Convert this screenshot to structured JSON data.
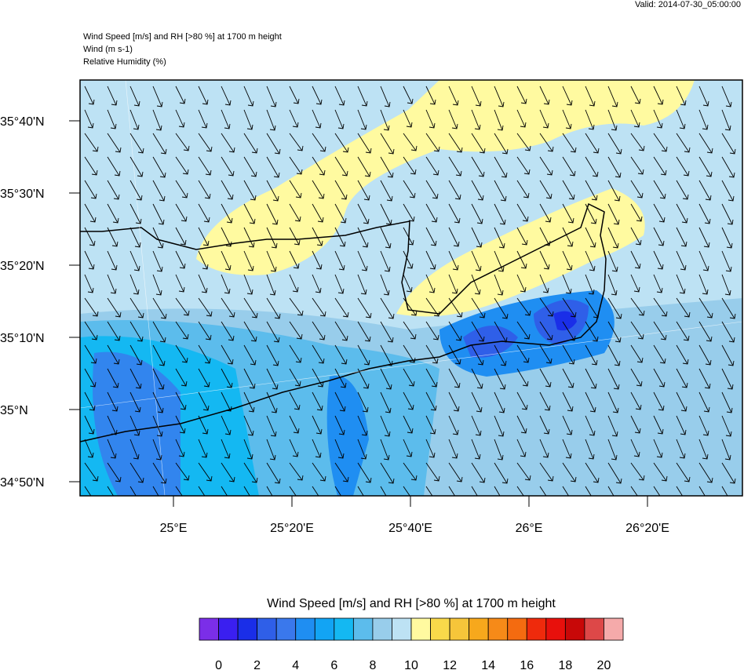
{
  "header": {
    "valid": "Valid: 2014-07-30_05:00:00",
    "lines": [
      "Wind Speed [m/s] and RH [>80 %] at 1700 m height",
      "Wind   (m s-1)",
      "Relative Humidity   (%)"
    ]
  },
  "map": {
    "lat_labels": [
      "35°40'N",
      "35°30'N",
      "35°20'N",
      "35°10'N",
      "35°N",
      "34°50'N"
    ],
    "lon_labels": [
      "25°E",
      "25°20'E",
      "25°40'E",
      "26°E",
      "26°20'E"
    ]
  },
  "colorbar": {
    "title": "Wind Speed [m/s] and RH [>80 %] at 1700 m height",
    "colors": [
      "#7b2ee8",
      "#3a1ff0",
      "#1a2ee8",
      "#2f5fe8",
      "#3a78ec",
      "#1f8ef2",
      "#12a4f4",
      "#14b8f2",
      "#5cbcec",
      "#98cdeb",
      "#bde2f4",
      "#fffaa0",
      "#f9d94a",
      "#f6c53a",
      "#f7a81c",
      "#f68a18",
      "#f46b10",
      "#ef2a0c",
      "#e8100c",
      "#c80808",
      "#dd4848",
      "#f5aaaa"
    ],
    "ticks": [
      0,
      2,
      4,
      6,
      8,
      10,
      12,
      14,
      16,
      18,
      20
    ]
  }
}
